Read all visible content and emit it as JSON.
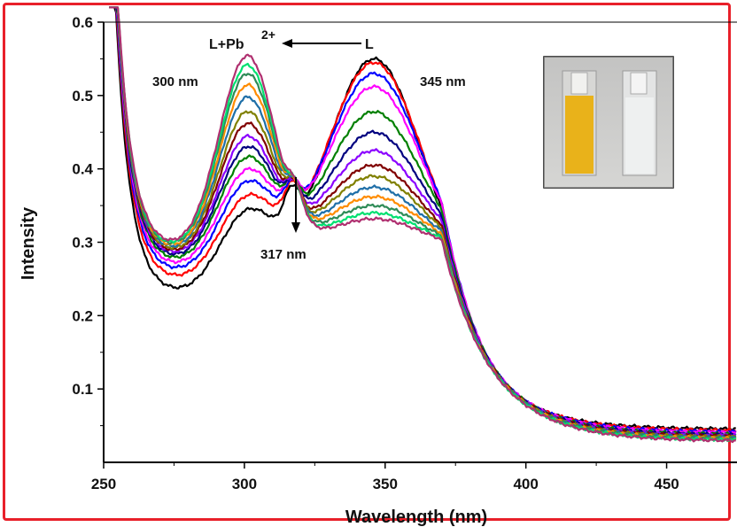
{
  "chart_data": {
    "type": "line",
    "xlabel": "Wavelength (nm)",
    "ylabel": "Intensity",
    "xlim": [
      250,
      475
    ],
    "ylim": [
      0.0,
      0.6
    ],
    "x_ticks": [
      "250",
      "300",
      "350",
      "400",
      "450"
    ],
    "y_ticks": [
      "0.1",
      "0.2",
      "0.3",
      "0.4",
      "0.5",
      "0.6"
    ],
    "x_tick_values": [
      250,
      300,
      350,
      400,
      450
    ],
    "y_tick_values": [
      0.1,
      0.2,
      0.3,
      0.4,
      0.5,
      0.6
    ],
    "grid": false,
    "isosbestic_point": {
      "x": 317,
      "y": 0.41
    },
    "annotations": {
      "peak_left": "300 nm",
      "peak_right": "345 nm",
      "isosbestic": "317 nm",
      "complex": "L+Pb",
      "complex_charge": "2+",
      "ligand": "L"
    },
    "inset": {
      "description_colors": [
        "#e9b21a",
        "#eef0f0"
      ]
    },
    "series": [
      {
        "color": "#000000",
        "min": 0.228,
        "peak300": 0.335,
        "peak345": 0.55,
        "tail": 0.045
      },
      {
        "color": "#ff0000",
        "min": 0.245,
        "peak300": 0.355,
        "peak345": 0.545,
        "tail": 0.043
      },
      {
        "color": "#0000ff",
        "min": 0.255,
        "peak300": 0.375,
        "peak345": 0.53,
        "tail": 0.041
      },
      {
        "color": "#ff00ff",
        "min": 0.262,
        "peak300": 0.392,
        "peak345": 0.512,
        "tail": 0.04
      },
      {
        "color": "#008000",
        "min": 0.268,
        "peak300": 0.41,
        "peak345": 0.478,
        "tail": 0.038
      },
      {
        "color": "#000080",
        "min": 0.272,
        "peak300": 0.425,
        "peak345": 0.45,
        "tail": 0.037
      },
      {
        "color": "#8b00ff",
        "min": 0.275,
        "peak300": 0.44,
        "peak345": 0.425,
        "tail": 0.036
      },
      {
        "color": "#800000",
        "min": 0.277,
        "peak300": 0.458,
        "peak345": 0.405,
        "tail": 0.035
      },
      {
        "color": "#808000",
        "min": 0.279,
        "peak300": 0.475,
        "peak345": 0.39,
        "tail": 0.034
      },
      {
        "color": "#1f6fa8",
        "min": 0.281,
        "peak300": 0.495,
        "peak345": 0.375,
        "tail": 0.033
      },
      {
        "color": "#ff8c00",
        "min": 0.283,
        "peak300": 0.512,
        "peak345": 0.362,
        "tail": 0.032
      },
      {
        "color": "#2e8b57",
        "min": 0.285,
        "peak300": 0.528,
        "peak345": 0.35,
        "tail": 0.031
      },
      {
        "color": "#00e070",
        "min": 0.286,
        "peak300": 0.54,
        "peak345": 0.34,
        "tail": 0.03
      },
      {
        "color": "#b03070",
        "min": 0.288,
        "peak300": 0.553,
        "peak345": 0.332,
        "tail": 0.029
      }
    ]
  }
}
